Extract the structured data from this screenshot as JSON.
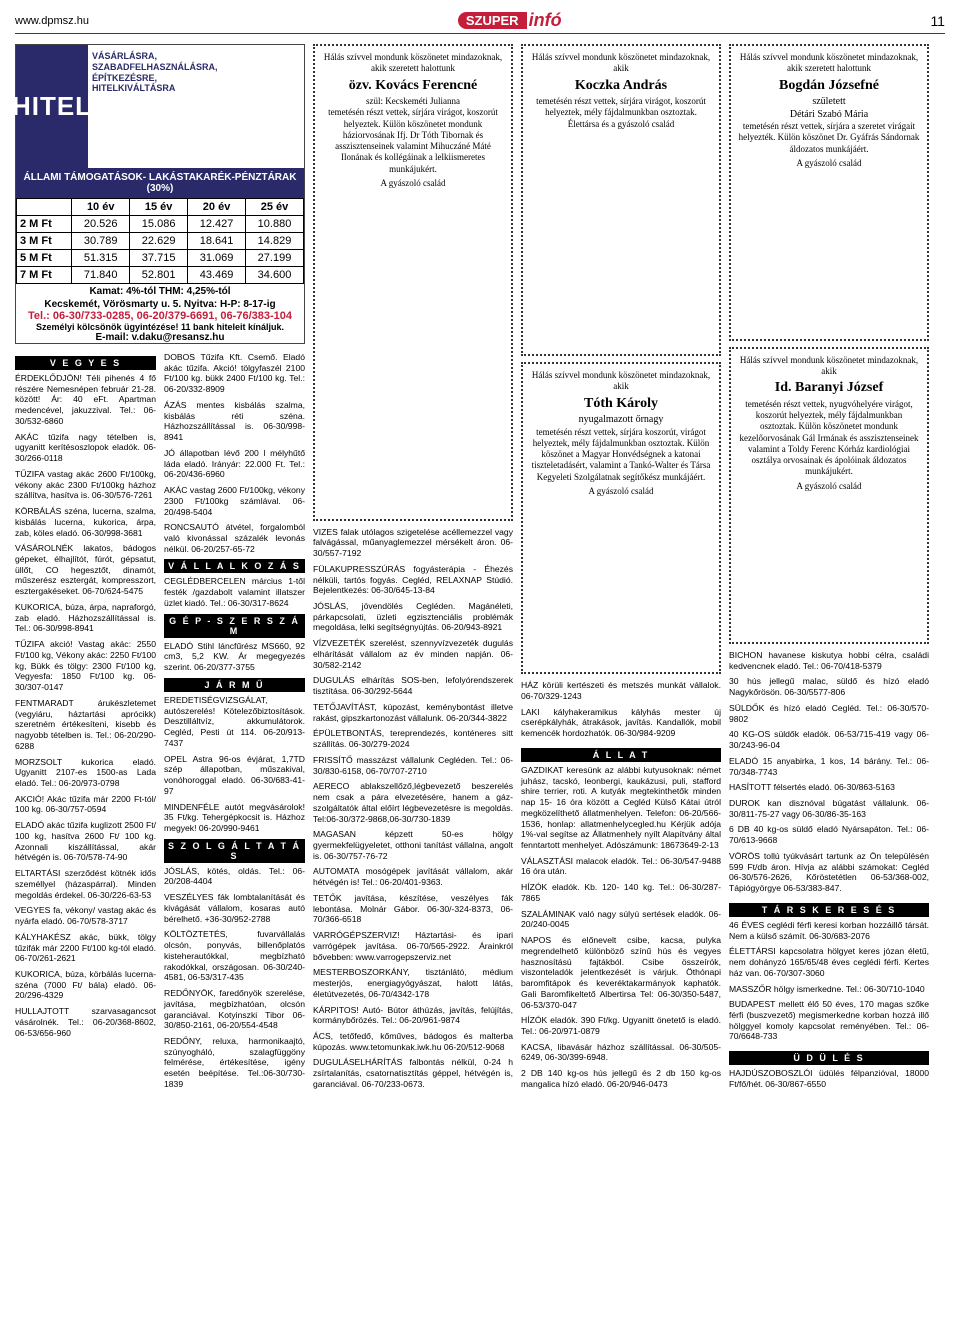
{
  "header": {
    "url": "www.dpmsz.hu",
    "brand_szuper": "SZUPER",
    "brand_info": "infó",
    "pagenum": "11"
  },
  "hitel": {
    "title": "HITEL",
    "slogan": "VÁSÁRLÁSRA,\nSZABADFELHASZNÁLÁSRA,\nÉPÍTKEZÉSRE,\nHITELKIVÁLTÁSRA",
    "band": "ÁLLAMI TÁMOGATÁSOK- LAKÁSTAKARÉK-PÉNZTÁRAK (30%)",
    "cols": [
      "",
      "10 év",
      "15 év",
      "20 év",
      "25 év"
    ],
    "rows": [
      [
        "2 M Ft",
        "20.526",
        "15.086",
        "12.427",
        "10.880"
      ],
      [
        "3 M Ft",
        "30.789",
        "22.629",
        "18.641",
        "14.829"
      ],
      [
        "5 M Ft",
        "51.315",
        "37.715",
        "31.069",
        "27.199"
      ],
      [
        "7 M Ft",
        "71.840",
        "52.801",
        "43.469",
        "34.600"
      ]
    ],
    "kamat": "Kamat: 4%-tól THM: 4,25%-tól",
    "addr": "Kecskemét, Vörösmarty u. 5. Nyitva: H-P: 8-17-ig",
    "tel": "Tel.: 06-30/733-0285, 06-20/379-6691, 06-76/383-104",
    "small": "Személyi kölcsönök ügyintézése! 11 bank hiteleit kínáljuk.",
    "email": "E-mail: v.daku@resansz.hu"
  },
  "sections": {
    "vegyes": "V E G Y E S",
    "vallalkozas": "V Á L L A L K O Z Á S",
    "gepszerszam": "G É P - S Z E R S Z Á M",
    "jarmu": "J Á R M Ű",
    "szolgaltatas": "S Z O L G Á L T A T Á S",
    "allat": "Á L L A T",
    "tarskereses": "T Á R S K E R E S É S",
    "udules": "Ü D Ü L É S"
  },
  "vegyes_left": [
    "ÉRDEKLŐDJÖN! Téli pihenés 4 fő részére Nemesnépen február 21-28. között! Ár: 40 eFt. Apartman medencével, jakuzzival. Tel.: 06-30/532-6860",
    "AKÁC tűzifa nagy tételben is, ugyanitt kerítésoszlopok eladók. 06-30/266-0118",
    "TŰZIFA vastag akác 2600 Ft/100kg, vékony akác 2300 Ft/100kg házhoz szállítva, hasítva is. 06-30/576-7261",
    "KÖRBÁLÁS széna, lucerna, szalma, kisbálás lucerna, kukorica, árpa, zab, köles eladó. 06-30/998-3681",
    "VÁSÁROLNÉK lakatos, bádogos gépeket, élhajlítót, fúrót, gépsatut, üllőt, CO hegesztőt, dinamót, műszerész esztergát, kompresszort, esztergakéseket. 06-70/624-5475",
    "KUKORICA, búza, árpa, napraforgó, zab eladó. Házhozszállítással is. Tel.: 06-30/998-8941",
    "TŰZIFA akció! Vastag akác: 2550 Ft/100 kg, Vékony akác: 2250 Ft/100 kg, Bükk és tölgy: 2300 Ft/100 kg, Vegyesfa: 1850 Ft/100 kg. 06-30/307-0147",
    "FENTMARADT árukészletemet (vegyiáru, háztartási aprócikk) szeretném értékesíteni, kisebb és nagyobb tételben is. Tel.: 06-20/290-6288",
    "MORZSOLT kukorica eladó. Ugyanitt 2107-es 1500-as Lada eladó. Tel.: 06-20/973-0798",
    "AKCIÓ! Akác tűzifa már 2200 Ft-tól/ 100 kg. 06-30/757-0594",
    "ELADÓ akác tűzifa kuglizott 2500 Ft/ 100 kg, hasítva 2600 Ft/ 100 kg. Azonnali kiszállítással, akár hétvégén is. 06-70/578-74-90",
    "ELTARTÁSI szerződést kötnék idős személlyel (házaspárral). Minden megoldás érdekel. 06-30/226-63-53",
    "VEGYES fa, vékony/ vastag akác és nyárfa eladó. 06-70/578-3717",
    "KÁLYHAKÉSZ akác, bükk, tölgy tűzifák már 2200 Ft/100 kg-tól eladó. 06-70/261-2621",
    "KUKORICA, búza, körbálás lucerna- széna (7000 Ft/ bála) eladó. 06-20/296-4329",
    "HULLAJTOTT szarvasagancsot vásárolnék. Tel.: 06-20/368-8602, 06-53/656-960"
  ],
  "vegyes_right": [
    "DOBOS Tűzifa Kft. Csemő. Eladó akác tűzifa. Akció! tölgyfaszél 2100 Ft/100 kg. bükk 2400 Ft/100 kg. Tel.: 06-20/332-8909",
    "ÁZÁS mentes kisbálás szalma, kisbálás réti széna. Házhozszállítással is. 06-30/998-8941",
    "JÓ állapotban lévő 200 l mélyhűtő láda eladó. Irányár: 22.000 Ft. Tel.: 06-20/436-6960",
    "AKÁC vastag 2600 Ft/100kg, vékony 2300 Ft/100kg számlával. 06-20/498-5404",
    "RONCSAUTÓ átvétel, forgalomból való kivonással százalék levonás nélkül. 06-20/257-65-72"
  ],
  "vallalkozas": [
    "CEGLÉDBERCELEN március 1-től festék /gazdabolt valamint illatszer üzlet kiadó. Tel.: 06-30/317-8624"
  ],
  "gepszerszam": [
    "ELADÓ Stihl láncfűrész MS660, 92 cm3, 5,2 KW. Ár megegyezés szerint. 06-20/377-3755"
  ],
  "jarmu": [
    "EREDETISÉGVIZSGÁLAT, autószerelés! Kötelezőbiztosítások. Desztilláltvíz, akkumulátorok. Cegléd, Pesti út 114. 06-20/913-7437",
    "OPEL Astra 96-os évjárat, 1,7TD szép állapotban, műszakival, vonóhoroggal eladó. 06-30/683-41-97",
    "MINDENFÉLE autót megvásárolok! 35 Ft/kg. Tehergépkocsit is. Házhoz megyek! 06-20/990-9461"
  ],
  "szolgaltatas": [
    "JÓSLÁS, kötés, oldás. Tel.: 06-20/208-4404",
    "VESZÉLYES fák lombtalanítását és kivágását vállalom, kosaras autó bérelhető. +36-30/952-2788",
    "KÖLTÖZTETÉS, fuvarvállalás olcsón, ponyvás, billenőplatós kisteherautókkal, megbízható rakodókkal, országosan. 06-30/240-4581, 06-53/317-435",
    "REDŐNYÖK, faredőnyök szerelése, javítása, megbízhatóan, olcsón garanciával. Kotyinszki Tibor 06-30/850-2161, 06-20/554-4548",
    "REDŐNY, reluxa, harmonikaajtó, szúnyogháló, szalagfüggöny felmérése, értékesítése, igény esetén beépítése. Tel.:06-30/730-1839"
  ],
  "col3": [
    "VIZES falak utólagos szigetelése acéllemezzel vagy falvágással, műanyaglemezzel mérsékelt áron. 06-30/557-7192",
    "FÜLAKUPRESSZÚRÁS fogyásterápia - Éhezés nélküli, tartós fogyás. Cegléd, RELAXNAP Stúdió. Bejelentkezés: 06-30/645-13-84",
    "JÓSLÁS, jövendölés Cegléden. Magánéleti, párkapcsolati, üzleti egzisztenciális problémák megoldása, lelki segítségnyújtás. 06-20/943-8921",
    "VÍZVEZETÉK szerelést, szennyvízvezeték dugulás elhárítását vállalom az év minden napján. 06-30/582-2142",
    "DUGULÁS elhárítás SOS-ben, lefolyórendszerek tisztítása. 06-30/292-5644",
    "TETŐJAVÍTÁST, kúpozást, keménybontást illetve rakást, gipszkartonozást vállalunk. 06-20/344-3822",
    "ÉPÜLETBONTÁS, tereprendezés, konténeres sitt szállítás. 06-30/279-2024",
    "FRISSÍTŐ masszázst vállalunk Cegléden. Tel.: 06-30/830-6158, 06-70/707-2710",
    "AERECO ablakszellőző,légbevezető beszerelés nem csak a pára elvezetésére, hanem a gáz-szolgáltatók által előírt légbevezetésre is megoldás. Tel:06-30/372-9868,06-30/730-1839",
    "MAGASAN képzett 50-es hölgy gyermekfelügyeletet, otthoni tanítást vállalna, angolt is. 06-30/757-76-72",
    "AUTOMATA mosógépek javítását vállalom, akár hétvégén is! Tel.: 06-20/401-9363.",
    "TETŐK javítása, készítése, veszélyes fák lebontása. Molnár Gábor. 06-30/-324-8373, 06-70/366-6518",
    "VARRÓGÉPSZERVIZ! Háztartási- és ipari varrógépek javítása. 06-70/565-2922. Árainkról bővebben: www.varrogepszerviz.net",
    "MESTERBOSZORKÁNY, tisztánlátó, médium mesterjós, energiagyógyászat, halott látás, életútvezetés, 06-70/4342-178",
    "KÁRPITOS! Autó- Bútor áthúzás, javítás, felújítás, kormánybőrözés. Tel.: 06-20/961-9874",
    "ÁCS, tetőfedő, kőműves, bádogos és malterba kúpozás. www.tetomunkak.iwk.hu 06-20/512-9068",
    "DUGULÁSELHÁRÍTÁS falbontás nélkül, 0-24 h zsírtalanítás, csatornatisztítás géppel, hétvégén is, garanciával. 06-70/233-0673."
  ],
  "col4": [
    "HÁZ körüli kertészeti és metszés munkát vállalok. 06-70/329-1243",
    "LAKI kályhakeramikus kályhás mester új cserépkályhák, átrakások, javítás. Kandallók, mobil kemencék hordozhatók. 06-30/984-9209",
    "GAZDIKAT keresünk az alábbi kutyusoknak: német juhász, tacskó, leonbergi, kaukázusi, puli, stafford shire terrier, roti. A kutyák megtekinthetők minden nap 15- 16 óra között a Cegléd Külső Kátai útról megközelíthető állatmenhelyen. Telefon: 06-20/566-1536, honlap: allatmenhelycegled.hu Kérjük adója 1%-val segítse az Állatmenhely nyílt Alapítvány által fenntartott menhelyet. Adószámunk: 18673649-2-13",
    "VÁLASZTÁSI malacok eladók. Tel.: 06-30/547-9488 16 óra után.",
    "HÍZÓK eladók. Kb. 120- 140 kg. Tel.: 06-30/287-7865",
    "SZALÁMINAK való nagy súlyú sertések eladók. 06-20/240-0045",
    "NAPOS és előnevelt csibe, kacsa, pulyka megrendelhető különböző színű hús és vegyes hasznosítású fajtákból. Csibe összeírók, viszonteladók jelentkezését is várjuk. Öthónapi baromfitápok és keveréktakarmányok kaphatók. Gali Baromfikeltető Albertirsa Tel: 06-30/350-5487, 06-53/370-047",
    "HÍZÓK eladók. 390 Ft/kg. Ugyanitt önetető is eladó. Tel.: 06-20/971-0879",
    "KACSA, libavásár házhoz szállítással. 06-30/505-6249, 06-30/399-6948.",
    "2 DB 140 kg-os hús jellegű és 2 db 150 kg-os mangalica hízó eladó. 06-20/946-0473"
  ],
  "col5": [
    "BICHON havanese kiskutya hobbi célra, családi kedvencnek eladó. Tel.: 06-70/418-5379",
    "30 hús jellegű malac, süldő és hízó eladó Nagykőrösön. 06-30/5577-806",
    "SÜLDŐK és hízó eladó Cegléd. Tel.: 06-30/570-9802",
    "40 KG-OS süldők eladók. 06-53/715-419 vagy 06-30/243-96-04",
    "ELADÓ 15 anyabirka, 1 kos, 14 bárány. Tel.: 06-70/348-7743",
    "HASÍTOTT félsertés eladó. 06-30/863-5163",
    "DUROK kan disznóval búgatást vállalunk. 06-30/811-75-27 vagy 06-30/86-35-163",
    "6 DB 40 kg-os süldő eladó Nyársapáton. Tel.: 06-70/613-9668",
    "VÖRÖS tollú tyúkvásárt tartunk az Ön településén 599 Ft/db áron. Hívja az alábbi számokat: Cegléd 06-30/576-2626, Kőröstetétlen 06-53/368-002, Tápiógyörgye 06-53/383-847.",
    "46 ÉVES ceglédi férfi keresi korban hozzáillő társát. Nem a külső számít. 06-30/683-2076",
    "ÉLETTÁRSI kapcsolatra hölgyet keres józan életű, nem dohányzó 165/65/48 éves ceglédi férfi. Kertes ház van. 06-70/307-3060",
    "MASSZŐR hölgy ismerkedne. Tel.: 06-30/710-1040",
    "BUDAPEST mellett élő 50 éves, 170 magas szőke férfi (buszvezető) megismerkedne korban hozzá illő hölggyel komoly kapcsolat reményében. Tel.: 06-70/6648-733",
    "HAJDÚSZOBOSZLÓI üdülés félpanzióval, 18000 Ft/fő/hét. 06-30/867-6550"
  ],
  "obits": {
    "o1": {
      "lead": "Hálás szívvel mondunk köszönetet mindazoknak, akik szeretett halottunk",
      "name": "özv. Kovács Ferencné",
      "body": "szül: Kecskeméti Julianna\ntemetésén részt vettek, sírjára virágot, koszorút helyeztek. Külön köszönetet mondunk háziorvosának Ifj. Dr Tóth Tibornak és asszisztenseinek valamint Mihuczáné Máté Ilonának és kollégáinak a lelkiismeretes munkájukért.",
      "sign": "A gyászoló család"
    },
    "o2": {
      "lead": "Hálás szívvel mondunk köszönetet mindazoknak, akik",
      "name": "Koczka András",
      "body": "temetésén részt vettek, sírjára virágot, koszorút helyeztek, mély fájdalmunkban osztoztak.\nÉlettársa és a gyászoló család",
      "sign": ""
    },
    "o3": {
      "lead": "Hálás szívvel mondunk köszönetet mindazoknak, akik szeretett halottunk",
      "name": "Bogdán Józsefné",
      "sub": "született\nDétári Szabó Mária",
      "body": "temetésén részt vettek, sírjára a szeretet virágait helyezték. Külön köszönet Dr. Gyáfrás Sándornak áldozatos munkájáért.",
      "sign": "A gyászoló család"
    },
    "o4": {
      "lead": "Hálás szívvel mondunk köszönetet mindazoknak, akik",
      "name": "Tóth Károly",
      "sub": "nyugalmazott őrnagy",
      "body": "temetésén részt vettek, sírjára koszorút, virágot helyeztek, mély fájdalmunkban osztoztak. Külön köszönet a Magyar Honvédségnek a katonai tiszteletadásért, valamint a Tankó-Walter és Társa Kegyeleti Szolgálatnak segítőkész munkájáért.",
      "sign": "A gyászoló család"
    },
    "o5": {
      "lead": "Hálás szívvel mondunk köszönetet mindazoknak, akik",
      "name": "Id. Baranyi József",
      "body": "temetésén részt vettek, nyugvóhelyére virágot, koszorút helyeztek, mély fájdalmunkban osztoztak. Külön köszönetet mondunk kezelőorvosának Gál Irmának és asszisztenseinek valamint a Toldy Ferenc Kórház kardiológiai osztálya orvosainak és ápolóinak áldozatos munkájukért.",
      "sign": "A gyászoló család"
    }
  }
}
